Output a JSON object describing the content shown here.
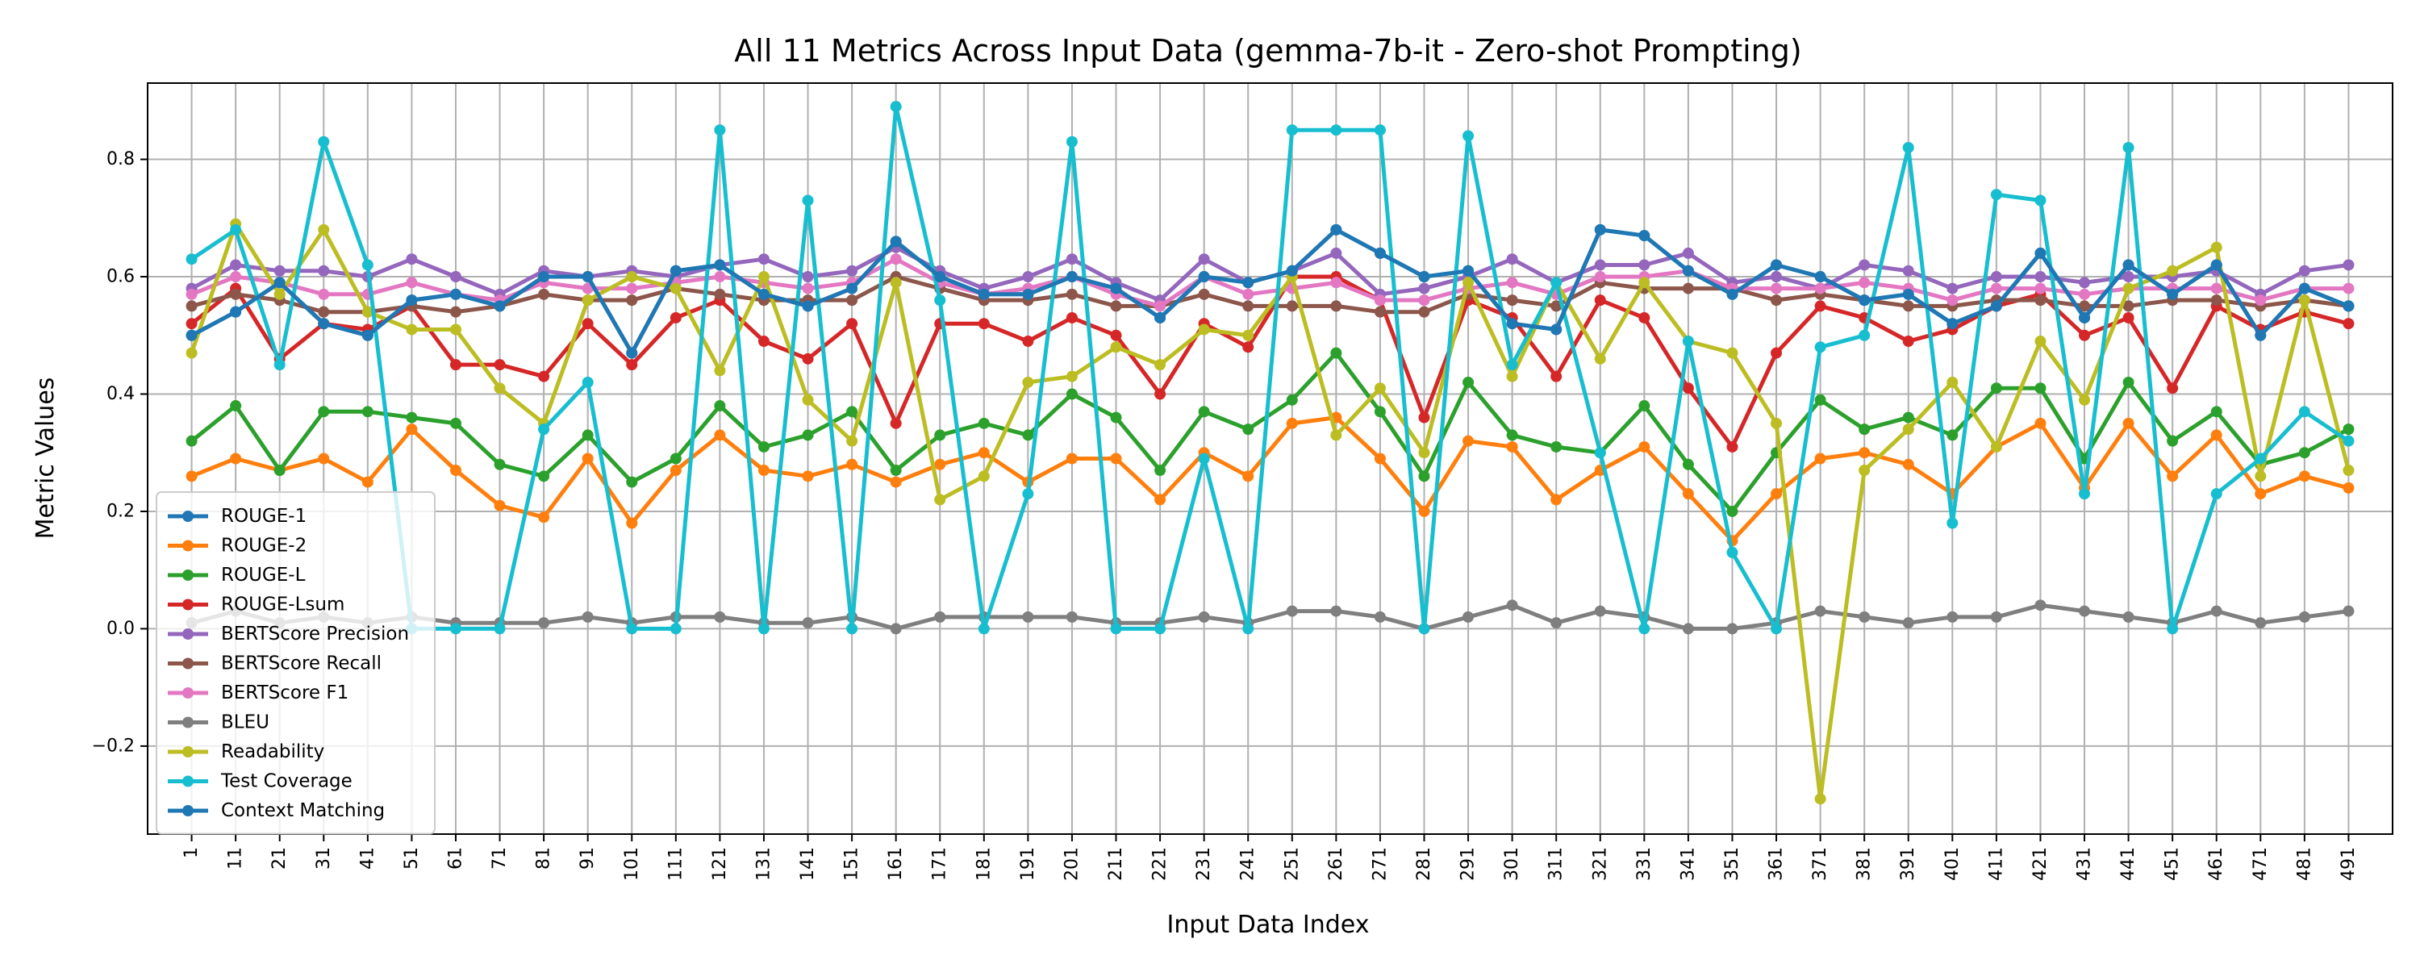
{
  "chart_data": {
    "type": "line",
    "title": "All 11 Metrics Across Input Data (gemma-7b-it - Zero-shot Prompting)",
    "xlabel": "Input Data Index",
    "ylabel": "Metric Values",
    "ylim": [
      -0.35,
      0.93
    ],
    "yticks": [
      -0.2,
      0.0,
      0.2,
      0.4,
      0.6,
      0.8
    ],
    "ytick_labels": [
      "−0.2",
      "0.0",
      "0.2",
      "0.4",
      "0.6",
      "0.8"
    ],
    "grid": true,
    "legend_placement": "lower-left",
    "x": [
      1,
      11,
      21,
      31,
      41,
      51,
      61,
      71,
      81,
      91,
      101,
      111,
      121,
      131,
      141,
      151,
      161,
      171,
      181,
      191,
      201,
      211,
      221,
      231,
      241,
      251,
      261,
      271,
      281,
      291,
      301,
      311,
      321,
      331,
      341,
      351,
      361,
      371,
      381,
      391,
      401,
      411,
      421,
      431,
      441,
      451,
      461,
      471,
      481,
      491
    ],
    "series": [
      {
        "name": "ROUGE-1",
        "color": "#1f77b4",
        "values": [
          0.5,
          0.54,
          0.59,
          0.52,
          0.5,
          0.56,
          0.57,
          0.55,
          0.6,
          0.6,
          0.47,
          0.61,
          0.62,
          0.57,
          0.55,
          0.58,
          0.66,
          0.6,
          0.57,
          0.57,
          0.6,
          0.58,
          0.53,
          0.6,
          0.59,
          0.61,
          0.68,
          0.64,
          0.6,
          0.61,
          0.52,
          0.51,
          0.68,
          0.67,
          0.61,
          0.57,
          0.62,
          0.6,
          0.56,
          0.57,
          0.52,
          0.55,
          0.64,
          0.53,
          0.62,
          0.57,
          0.62,
          0.5,
          0.58,
          0.55
        ]
      },
      {
        "name": "ROUGE-2",
        "color": "#ff7f0e",
        "values": [
          0.26,
          0.29,
          0.27,
          0.29,
          0.25,
          0.34,
          0.27,
          0.21,
          0.19,
          0.29,
          0.18,
          0.27,
          0.33,
          0.27,
          0.26,
          0.28,
          0.25,
          0.28,
          0.3,
          0.25,
          0.29,
          0.29,
          0.22,
          0.3,
          0.26,
          0.35,
          0.36,
          0.29,
          0.2,
          0.32,
          0.31,
          0.22,
          0.27,
          0.31,
          0.23,
          0.15,
          0.23,
          0.29,
          0.3,
          0.28,
          0.23,
          0.31,
          0.35,
          0.24,
          0.35,
          0.26,
          0.33,
          0.23,
          0.26,
          0.24
        ]
      },
      {
        "name": "ROUGE-L",
        "color": "#2ca02c",
        "values": [
          0.32,
          0.38,
          0.27,
          0.37,
          0.37,
          0.36,
          0.35,
          0.28,
          0.26,
          0.33,
          0.25,
          0.29,
          0.38,
          0.31,
          0.33,
          0.37,
          0.27,
          0.33,
          0.35,
          0.33,
          0.4,
          0.36,
          0.27,
          0.37,
          0.34,
          0.39,
          0.47,
          0.37,
          0.26,
          0.42,
          0.33,
          0.31,
          0.3,
          0.38,
          0.28,
          0.2,
          0.3,
          0.39,
          0.34,
          0.36,
          0.33,
          0.41,
          0.41,
          0.29,
          0.42,
          0.32,
          0.37,
          0.28,
          0.3,
          0.34
        ]
      },
      {
        "name": "ROUGE-Lsum",
        "color": "#d62728",
        "values": [
          0.52,
          0.58,
          0.46,
          0.52,
          0.51,
          0.55,
          0.45,
          0.45,
          0.43,
          0.52,
          0.45,
          0.53,
          0.56,
          0.49,
          0.46,
          0.52,
          0.35,
          0.52,
          0.52,
          0.49,
          0.53,
          0.5,
          0.4,
          0.52,
          0.48,
          0.6,
          0.6,
          0.56,
          0.36,
          0.56,
          0.53,
          0.43,
          0.56,
          0.53,
          0.41,
          0.31,
          0.47,
          0.55,
          0.53,
          0.49,
          0.51,
          0.55,
          0.57,
          0.5,
          0.53,
          0.41,
          0.55,
          0.51,
          0.54,
          0.52
        ]
      },
      {
        "name": "BERTScore Precision",
        "color": "#9467bd",
        "values": [
          0.58,
          0.62,
          0.61,
          0.61,
          0.6,
          0.63,
          0.6,
          0.57,
          0.61,
          0.6,
          0.61,
          0.6,
          0.62,
          0.63,
          0.6,
          0.61,
          0.65,
          0.61,
          0.58,
          0.6,
          0.63,
          0.59,
          0.56,
          0.63,
          0.59,
          0.61,
          0.64,
          0.57,
          0.58,
          0.6,
          0.63,
          0.59,
          0.62,
          0.62,
          0.64,
          0.59,
          0.6,
          0.58,
          0.62,
          0.61,
          0.58,
          0.6,
          0.6,
          0.59,
          0.6,
          0.6,
          0.61,
          0.57,
          0.61,
          0.62
        ]
      },
      {
        "name": "BERTScore Recall",
        "color": "#8c564b",
        "values": [
          0.55,
          0.57,
          0.56,
          0.54,
          0.54,
          0.55,
          0.54,
          0.55,
          0.57,
          0.56,
          0.56,
          0.58,
          0.57,
          0.56,
          0.56,
          0.56,
          0.6,
          0.58,
          0.56,
          0.56,
          0.57,
          0.55,
          0.55,
          0.57,
          0.55,
          0.55,
          0.55,
          0.54,
          0.54,
          0.57,
          0.56,
          0.55,
          0.59,
          0.58,
          0.58,
          0.58,
          0.56,
          0.57,
          0.56,
          0.55,
          0.55,
          0.56,
          0.56,
          0.55,
          0.55,
          0.56,
          0.56,
          0.55,
          0.56,
          0.55
        ]
      },
      {
        "name": "BERTScore F1",
        "color": "#e377c2",
        "values": [
          0.57,
          0.6,
          0.59,
          0.57,
          0.57,
          0.59,
          0.57,
          0.56,
          0.59,
          0.58,
          0.58,
          0.59,
          0.6,
          0.59,
          0.58,
          0.59,
          0.63,
          0.59,
          0.57,
          0.58,
          0.6,
          0.57,
          0.55,
          0.6,
          0.57,
          0.58,
          0.59,
          0.56,
          0.56,
          0.58,
          0.59,
          0.57,
          0.6,
          0.6,
          0.61,
          0.58,
          0.58,
          0.58,
          0.59,
          0.58,
          0.56,
          0.58,
          0.58,
          0.57,
          0.58,
          0.58,
          0.58,
          0.56,
          0.58,
          0.58
        ]
      },
      {
        "name": "BLEU",
        "color": "#7f7f7f",
        "values": [
          0.01,
          0.03,
          0.01,
          0.02,
          0.01,
          0.02,
          0.01,
          0.01,
          0.01,
          0.02,
          0.01,
          0.02,
          0.02,
          0.01,
          0.01,
          0.02,
          0.0,
          0.02,
          0.02,
          0.02,
          0.02,
          0.01,
          0.01,
          0.02,
          0.01,
          0.03,
          0.03,
          0.02,
          0.0,
          0.02,
          0.04,
          0.01,
          0.03,
          0.02,
          0.0,
          0.0,
          0.01,
          0.03,
          0.02,
          0.01,
          0.02,
          0.02,
          0.04,
          0.03,
          0.02,
          0.01,
          0.03,
          0.01,
          0.02,
          0.03
        ]
      },
      {
        "name": "Readability",
        "color": "#bcbd22",
        "values": [
          0.47,
          0.69,
          0.57,
          0.68,
          0.54,
          0.51,
          0.51,
          0.41,
          0.35,
          0.56,
          0.6,
          0.58,
          0.44,
          0.6,
          0.39,
          0.32,
          0.59,
          0.22,
          0.26,
          0.42,
          0.43,
          0.48,
          0.45,
          0.51,
          0.5,
          0.6,
          0.33,
          0.41,
          0.3,
          0.59,
          0.43,
          0.59,
          0.46,
          0.59,
          0.49,
          0.47,
          0.35,
          -0.29,
          0.27,
          0.34,
          0.42,
          0.31,
          0.49,
          0.39,
          0.58,
          0.61,
          0.65,
          0.26,
          0.56,
          0.27
        ]
      },
      {
        "name": "Test Coverage",
        "color": "#17becf",
        "values": [
          0.63,
          0.68,
          0.45,
          0.83,
          0.62,
          0.0,
          0.0,
          0.0,
          0.34,
          0.42,
          0.0,
          0.0,
          0.85,
          0.0,
          0.73,
          0.0,
          0.89,
          0.56,
          0.0,
          0.23,
          0.83,
          0.0,
          0.0,
          0.29,
          0.0,
          0.85,
          0.85,
          0.85,
          0.0,
          0.84,
          0.45,
          0.59,
          0.3,
          0.0,
          0.49,
          0.13,
          0.0,
          0.48,
          0.5,
          0.82,
          0.18,
          0.74,
          0.73,
          0.23,
          0.82,
          0.0,
          0.23,
          0.29,
          0.37,
          0.32
        ]
      },
      {
        "name": "Context Matching",
        "color": "#1f77b4",
        "values": [
          0.5,
          0.54,
          0.59,
          0.52,
          0.5,
          0.56,
          0.57,
          0.55,
          0.6,
          0.6,
          0.47,
          0.61,
          0.62,
          0.57,
          0.55,
          0.58,
          0.66,
          0.6,
          0.57,
          0.57,
          0.6,
          0.58,
          0.53,
          0.6,
          0.59,
          0.61,
          0.68,
          0.64,
          0.6,
          0.61,
          0.52,
          0.51,
          0.68,
          0.67,
          0.61,
          0.57,
          0.62,
          0.6,
          0.56,
          0.57,
          0.52,
          0.55,
          0.64,
          0.53,
          0.62,
          0.57,
          0.62,
          0.5,
          0.58,
          0.55
        ]
      }
    ]
  }
}
